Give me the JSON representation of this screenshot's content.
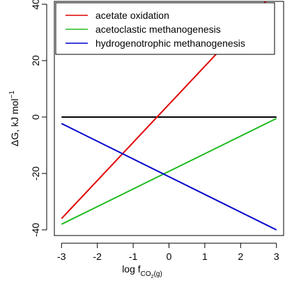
{
  "chart_data": {
    "type": "line",
    "xlabel": "log f",
    "xlabel_subscript": "CO",
    "xlabel_subscript_2": "2",
    "xlabel_subscript_3": "(g)",
    "ylabel": "ΔG, kJ mol",
    "ylabel_superscript": "−1",
    "xlim": [
      -3.2,
      3.2
    ],
    "ylim": [
      -42,
      41
    ],
    "xticks": [
      -3,
      -2,
      -1,
      0,
      1,
      2,
      3
    ],
    "xtick_labels": [
      "-3",
      "-2",
      "-1",
      "0",
      "1",
      "2",
      "3"
    ],
    "yticks": [
      -40,
      -20,
      0,
      20,
      40
    ],
    "ytick_labels": [
      "-40",
      "-20",
      "0",
      "20",
      "40"
    ],
    "legend_position": "top-right",
    "series": [
      {
        "name": "acetate oxidation",
        "color": "#e00000",
        "x": [
          -3,
          3
        ],
        "y": [
          -36,
          45
        ]
      },
      {
        "name": "acetoclastic methanogenesis",
        "color": "#22bb22",
        "x": [
          -3,
          3
        ],
        "y": [
          -38,
          -0.5
        ]
      },
      {
        "name": "hydrogenotrophic methanogenesis",
        "color": "#0000cc",
        "x": [
          -3,
          3
        ],
        "y": [
          -2.3,
          -40
        ]
      }
    ],
    "reference_line": {
      "y": 0,
      "x": [
        -3,
        3
      ],
      "color": "#000000"
    }
  }
}
